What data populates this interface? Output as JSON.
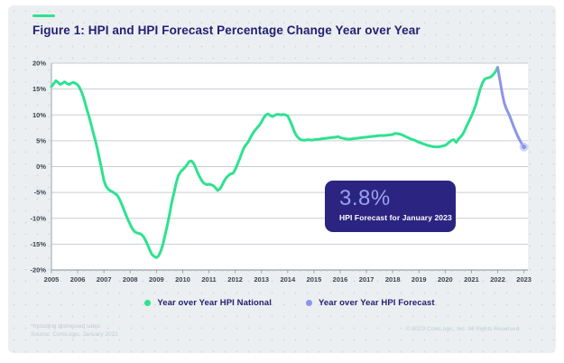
{
  "figure": {
    "title": "Figure 1: HPI and HPI Forecast Percentage Change Year over Year",
    "footnote_line1": "*Including distressed sales",
    "footnote_line2": "Source: CoreLogic, January 2022",
    "copyright": "© 2022 CoreLogic, Inc. All Rights Reserved."
  },
  "annotation": {
    "value": "3.8%",
    "label": "HPI Forecast for January 2023"
  },
  "legend": [
    {
      "key": "national",
      "label": "Year over Year HPI National",
      "color": "#2ee28f"
    },
    {
      "key": "forecast",
      "label": "Year over Year HPI Forecast",
      "color": "#8b95e9"
    }
  ],
  "colors": {
    "accent_dash": "#2ee28f",
    "title_text": "#232072",
    "panel_bg": "#ebeff1",
    "grid_line": "#c9cdd2",
    "axis_line": "#9aa1a9",
    "tick_text": "#3e4450",
    "annotation_bg": "#2b2481",
    "annotation_value": "#99a2ee",
    "national_line": "#2ee28f",
    "forecast_line": "#8b95e9",
    "forecast_endpoint": "#a9b3f0"
  },
  "chart_data": {
    "type": "line",
    "title": "HPI and HPI Forecast Percentage Change Year over Year",
    "xlim": [
      2005,
      2023.15
    ],
    "ylim": [
      -20,
      20
    ],
    "grid": true,
    "legend_position": "bottom",
    "y_ticks": [
      {
        "value": 20,
        "label": "20%"
      },
      {
        "value": 15,
        "label": "15%"
      },
      {
        "value": 10,
        "label": "10%"
      },
      {
        "value": 5,
        "label": "5%"
      },
      {
        "value": 0,
        "label": "0%"
      },
      {
        "value": -5,
        "label": "-5%"
      },
      {
        "value": -10,
        "label": "-10%"
      },
      {
        "value": -15,
        "label": "-15%"
      },
      {
        "value": -20,
        "label": "-20%"
      }
    ],
    "x_ticks": [
      {
        "value": 2005,
        "label": "2005"
      },
      {
        "value": 2006,
        "label": "2006"
      },
      {
        "value": 2007,
        "label": "2007"
      },
      {
        "value": 2008,
        "label": "2008"
      },
      {
        "value": 2009,
        "label": "2009"
      },
      {
        "value": 2010,
        "label": "2010"
      },
      {
        "value": 2011,
        "label": "2011"
      },
      {
        "value": 2012,
        "label": "2012"
      },
      {
        "value": 2013,
        "label": "2013"
      },
      {
        "value": 2014,
        "label": "2014"
      },
      {
        "value": 2015,
        "label": "2015"
      },
      {
        "value": 2016,
        "label": "2016"
      },
      {
        "value": 2017,
        "label": "2017"
      },
      {
        "value": 2018,
        "label": "2018"
      },
      {
        "value": 2019,
        "label": "2019"
      },
      {
        "value": 2020,
        "label": "2020"
      },
      {
        "value": 2021,
        "label": "2021"
      },
      {
        "value": 2022,
        "label": "2022"
      },
      {
        "value": 2023,
        "label": "2023"
      }
    ],
    "series": [
      {
        "name": "Year over Year HPI National",
        "color": "#2ee28f",
        "points": [
          [
            2005.0,
            15.5
          ],
          [
            2005.08,
            16.0
          ],
          [
            2005.17,
            16.6
          ],
          [
            2005.25,
            16.3
          ],
          [
            2005.33,
            15.9
          ],
          [
            2005.42,
            16.1
          ],
          [
            2005.5,
            16.4
          ],
          [
            2005.58,
            16.1
          ],
          [
            2005.67,
            15.9
          ],
          [
            2005.75,
            16.1
          ],
          [
            2005.83,
            16.3
          ],
          [
            2005.92,
            16.1
          ],
          [
            2006.0,
            15.8
          ],
          [
            2006.08,
            15.2
          ],
          [
            2006.17,
            14.2
          ],
          [
            2006.25,
            12.9
          ],
          [
            2006.33,
            11.4
          ],
          [
            2006.42,
            9.9
          ],
          [
            2006.5,
            8.4
          ],
          [
            2006.58,
            6.8
          ],
          [
            2006.67,
            5.1
          ],
          [
            2006.75,
            3.4
          ],
          [
            2006.83,
            1.5
          ],
          [
            2006.92,
            -0.7
          ],
          [
            2007.0,
            -2.7
          ],
          [
            2007.08,
            -3.8
          ],
          [
            2007.17,
            -4.4
          ],
          [
            2007.25,
            -4.7
          ],
          [
            2007.33,
            -4.9
          ],
          [
            2007.42,
            -5.2
          ],
          [
            2007.5,
            -5.5
          ],
          [
            2007.58,
            -6.2
          ],
          [
            2007.67,
            -7.2
          ],
          [
            2007.75,
            -8.2
          ],
          [
            2007.83,
            -9.2
          ],
          [
            2007.92,
            -10.3
          ],
          [
            2008.0,
            -11.2
          ],
          [
            2008.08,
            -12.0
          ],
          [
            2008.17,
            -12.6
          ],
          [
            2008.25,
            -12.8
          ],
          [
            2008.33,
            -12.9
          ],
          [
            2008.42,
            -13.1
          ],
          [
            2008.5,
            -13.5
          ],
          [
            2008.58,
            -14.2
          ],
          [
            2008.67,
            -15.2
          ],
          [
            2008.75,
            -16.2
          ],
          [
            2008.83,
            -17.0
          ],
          [
            2008.92,
            -17.4
          ],
          [
            2009.0,
            -17.6
          ],
          [
            2009.08,
            -17.3
          ],
          [
            2009.17,
            -16.3
          ],
          [
            2009.25,
            -15.0
          ],
          [
            2009.33,
            -13.2
          ],
          [
            2009.42,
            -11.2
          ],
          [
            2009.5,
            -9.2
          ],
          [
            2009.58,
            -7.0
          ],
          [
            2009.67,
            -5.0
          ],
          [
            2009.75,
            -3.2
          ],
          [
            2009.83,
            -1.8
          ],
          [
            2009.92,
            -1.0
          ],
          [
            2010.0,
            -0.6
          ],
          [
            2010.08,
            -0.2
          ],
          [
            2010.17,
            0.4
          ],
          [
            2010.25,
            1.0
          ],
          [
            2010.33,
            1.1
          ],
          [
            2010.42,
            0.6
          ],
          [
            2010.5,
            -0.3
          ],
          [
            2010.58,
            -1.3
          ],
          [
            2010.67,
            -2.2
          ],
          [
            2010.75,
            -2.9
          ],
          [
            2010.83,
            -3.3
          ],
          [
            2010.92,
            -3.5
          ],
          [
            2011.0,
            -3.4
          ],
          [
            2011.08,
            -3.5
          ],
          [
            2011.17,
            -3.7
          ],
          [
            2011.25,
            -4.1
          ],
          [
            2011.33,
            -4.6
          ],
          [
            2011.42,
            -4.3
          ],
          [
            2011.5,
            -3.6
          ],
          [
            2011.58,
            -2.8
          ],
          [
            2011.67,
            -2.1
          ],
          [
            2011.75,
            -1.7
          ],
          [
            2011.83,
            -1.4
          ],
          [
            2011.92,
            -1.3
          ],
          [
            2012.0,
            -0.6
          ],
          [
            2012.08,
            0.4
          ],
          [
            2012.17,
            1.5
          ],
          [
            2012.25,
            2.6
          ],
          [
            2012.33,
            3.6
          ],
          [
            2012.42,
            4.3
          ],
          [
            2012.5,
            4.8
          ],
          [
            2012.58,
            5.6
          ],
          [
            2012.67,
            6.4
          ],
          [
            2012.75,
            7.0
          ],
          [
            2012.83,
            7.5
          ],
          [
            2012.92,
            8.0
          ],
          [
            2013.0,
            8.6
          ],
          [
            2013.08,
            9.4
          ],
          [
            2013.17,
            10.0
          ],
          [
            2013.25,
            10.2
          ],
          [
            2013.33,
            9.9
          ],
          [
            2013.42,
            9.7
          ],
          [
            2013.5,
            9.9
          ],
          [
            2013.58,
            10.1
          ],
          [
            2013.67,
            10.1
          ],
          [
            2013.75,
            10.0
          ],
          [
            2013.83,
            10.1
          ],
          [
            2013.92,
            10.0
          ],
          [
            2014.0,
            9.8
          ],
          [
            2014.08,
            9.0
          ],
          [
            2014.17,
            7.9
          ],
          [
            2014.25,
            6.8
          ],
          [
            2014.33,
            6.0
          ],
          [
            2014.42,
            5.5
          ],
          [
            2014.5,
            5.2
          ],
          [
            2014.58,
            5.1
          ],
          [
            2014.67,
            5.1
          ],
          [
            2014.75,
            5.2
          ],
          [
            2014.83,
            5.2
          ],
          [
            2014.92,
            5.1
          ],
          [
            2015.0,
            5.2
          ],
          [
            2015.17,
            5.3
          ],
          [
            2015.33,
            5.4
          ],
          [
            2015.5,
            5.5
          ],
          [
            2015.67,
            5.6
          ],
          [
            2015.83,
            5.7
          ],
          [
            2015.92,
            5.8
          ],
          [
            2016.0,
            5.6
          ],
          [
            2016.17,
            5.4
          ],
          [
            2016.33,
            5.3
          ],
          [
            2016.5,
            5.4
          ],
          [
            2016.67,
            5.5
          ],
          [
            2016.83,
            5.6
          ],
          [
            2017.0,
            5.7
          ],
          [
            2017.17,
            5.8
          ],
          [
            2017.33,
            5.9
          ],
          [
            2017.5,
            6.0
          ],
          [
            2017.67,
            6.0
          ],
          [
            2017.83,
            6.1
          ],
          [
            2018.0,
            6.2
          ],
          [
            2018.08,
            6.4
          ],
          [
            2018.17,
            6.4
          ],
          [
            2018.25,
            6.3
          ],
          [
            2018.33,
            6.2
          ],
          [
            2018.5,
            5.8
          ],
          [
            2018.67,
            5.4
          ],
          [
            2018.83,
            5.1
          ],
          [
            2019.0,
            4.7
          ],
          [
            2019.17,
            4.4
          ],
          [
            2019.33,
            4.1
          ],
          [
            2019.5,
            3.9
          ],
          [
            2019.67,
            3.8
          ],
          [
            2019.83,
            3.9
          ],
          [
            2020.0,
            4.1
          ],
          [
            2020.08,
            4.4
          ],
          [
            2020.17,
            4.8
          ],
          [
            2020.25,
            5.1
          ],
          [
            2020.33,
            5.2
          ],
          [
            2020.42,
            4.7
          ],
          [
            2020.5,
            5.3
          ],
          [
            2020.58,
            5.7
          ],
          [
            2020.67,
            6.3
          ],
          [
            2020.75,
            7.1
          ],
          [
            2020.83,
            8.0
          ],
          [
            2020.92,
            8.9
          ],
          [
            2021.0,
            9.8
          ],
          [
            2021.08,
            10.8
          ],
          [
            2021.17,
            12.0
          ],
          [
            2021.25,
            13.5
          ],
          [
            2021.33,
            15.0
          ],
          [
            2021.42,
            16.2
          ],
          [
            2021.5,
            16.9
          ],
          [
            2021.58,
            17.1
          ],
          [
            2021.67,
            17.2
          ],
          [
            2021.75,
            17.4
          ],
          [
            2021.83,
            17.8
          ],
          [
            2021.92,
            18.4
          ],
          [
            2022.0,
            19.2
          ]
        ]
      },
      {
        "name": "Year over Year HPI Forecast",
        "color": "#8b95e9",
        "endpoint_dot": true,
        "points": [
          [
            2022.0,
            19.2
          ],
          [
            2022.08,
            16.8
          ],
          [
            2022.17,
            14.2
          ],
          [
            2022.25,
            12.3
          ],
          [
            2022.33,
            11.2
          ],
          [
            2022.42,
            10.2
          ],
          [
            2022.5,
            9.2
          ],
          [
            2022.58,
            8.1
          ],
          [
            2022.67,
            7.0
          ],
          [
            2022.75,
            6.0
          ],
          [
            2022.83,
            5.2
          ],
          [
            2022.92,
            4.4
          ],
          [
            2023.0,
            3.8
          ]
        ]
      }
    ]
  }
}
